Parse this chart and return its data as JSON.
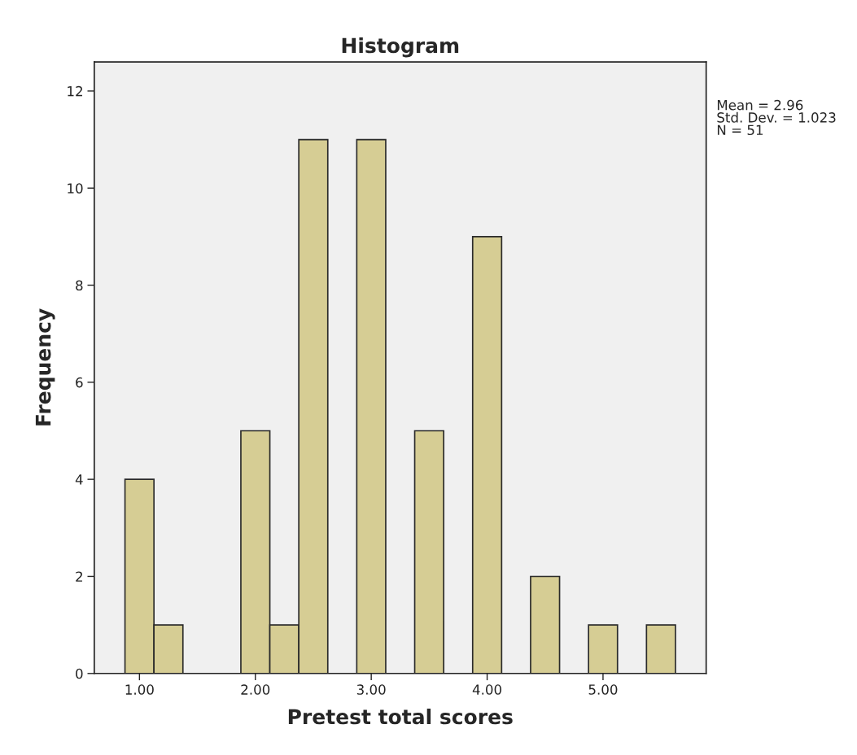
{
  "chart_data": {
    "type": "histogram",
    "title": "Histogram",
    "xlabel": "Pretest total scores",
    "ylabel": "Frequency",
    "bins": [
      0.875,
      1.125,
      1.375,
      1.625,
      1.875,
      2.125,
      2.375,
      2.625,
      2.875,
      3.125,
      3.375,
      3.625,
      3.875,
      4.125,
      4.375,
      4.625,
      4.875,
      5.125,
      5.375,
      5.625
    ],
    "values": [
      4,
      1,
      0,
      0,
      5,
      1,
      11,
      0,
      11,
      0,
      5,
      0,
      9,
      0,
      2,
      0,
      1,
      0,
      1
    ],
    "color": "#d6cd94",
    "xlim": [
      0.61,
      5.89
    ],
    "ylim": [
      0,
      12.6
    ],
    "xticks": [
      {
        "value": 1,
        "label": "1.00"
      },
      {
        "value": 2,
        "label": "2.00"
      },
      {
        "value": 3,
        "label": "3.00"
      },
      {
        "value": 4,
        "label": "4.00"
      },
      {
        "value": 5,
        "label": "5.00"
      }
    ],
    "yticks": [
      0,
      2,
      4,
      6,
      8,
      10,
      12
    ],
    "grid": false,
    "legend": false,
    "annotations": [
      "Mean = 2.96",
      "Std. Dev. = 1.023",
      "N = 51"
    ]
  }
}
